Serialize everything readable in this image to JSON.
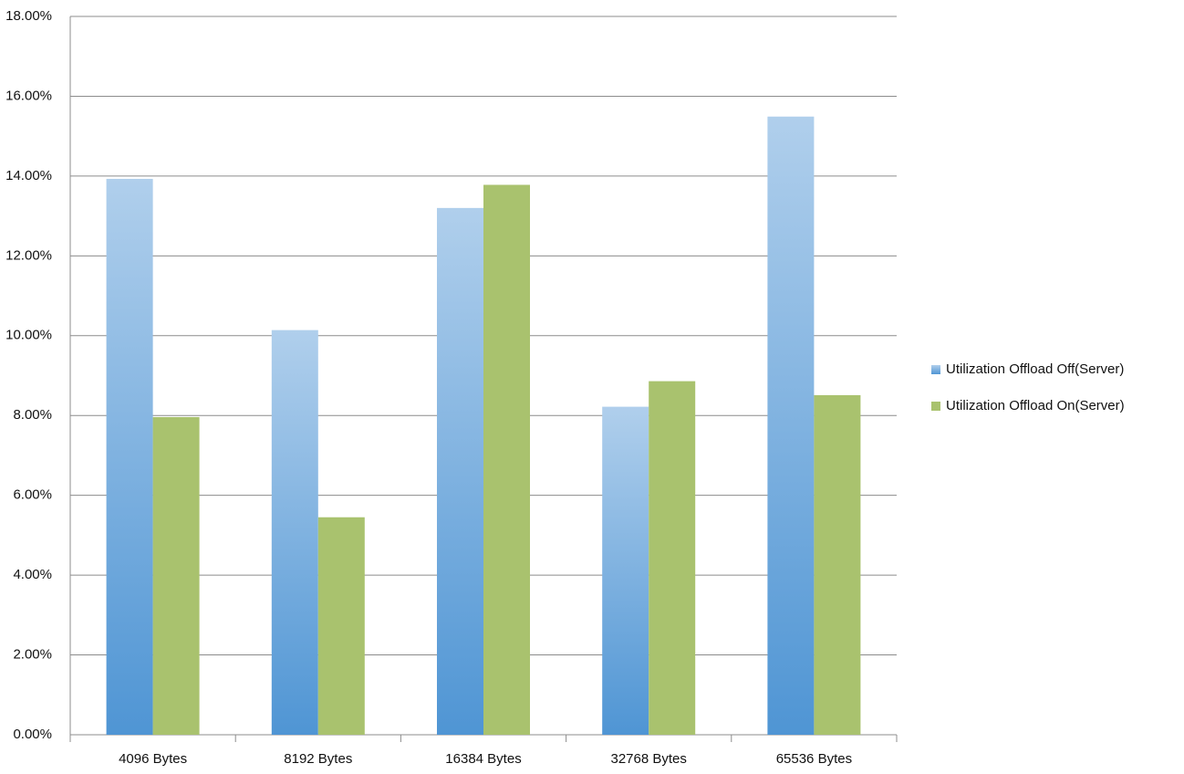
{
  "chart_data": {
    "type": "bar",
    "categories": [
      "4096 Bytes",
      "8192 Bytes",
      "16384 Bytes",
      "32768 Bytes",
      "65536 Bytes"
    ],
    "series": [
      {
        "name": "Utilization Offload Off(Server)",
        "color": "#4f95d4",
        "values": [
          13.93,
          10.14,
          13.2,
          8.22,
          15.49
        ]
      },
      {
        "name": "Utilization Offload On(Server)",
        "color": "#a9c26e",
        "values": [
          7.96,
          5.45,
          13.78,
          8.86,
          8.51
        ]
      }
    ],
    "ylim": [
      0,
      18
    ],
    "yticks": [
      {
        "value": 0,
        "label": "0.00%"
      },
      {
        "value": 2,
        "label": "2.00%"
      },
      {
        "value": 4,
        "label": "4.00%"
      },
      {
        "value": 6,
        "label": "6.00%"
      },
      {
        "value": 8,
        "label": "8.00%"
      },
      {
        "value": 10,
        "label": "10.00%"
      },
      {
        "value": 12,
        "label": "12.00%"
      },
      {
        "value": 14,
        "label": "14.00%"
      },
      {
        "value": 16,
        "label": "16.00%"
      },
      {
        "value": 18,
        "label": "18.00%"
      }
    ],
    "grid": true,
    "legend": "right"
  }
}
